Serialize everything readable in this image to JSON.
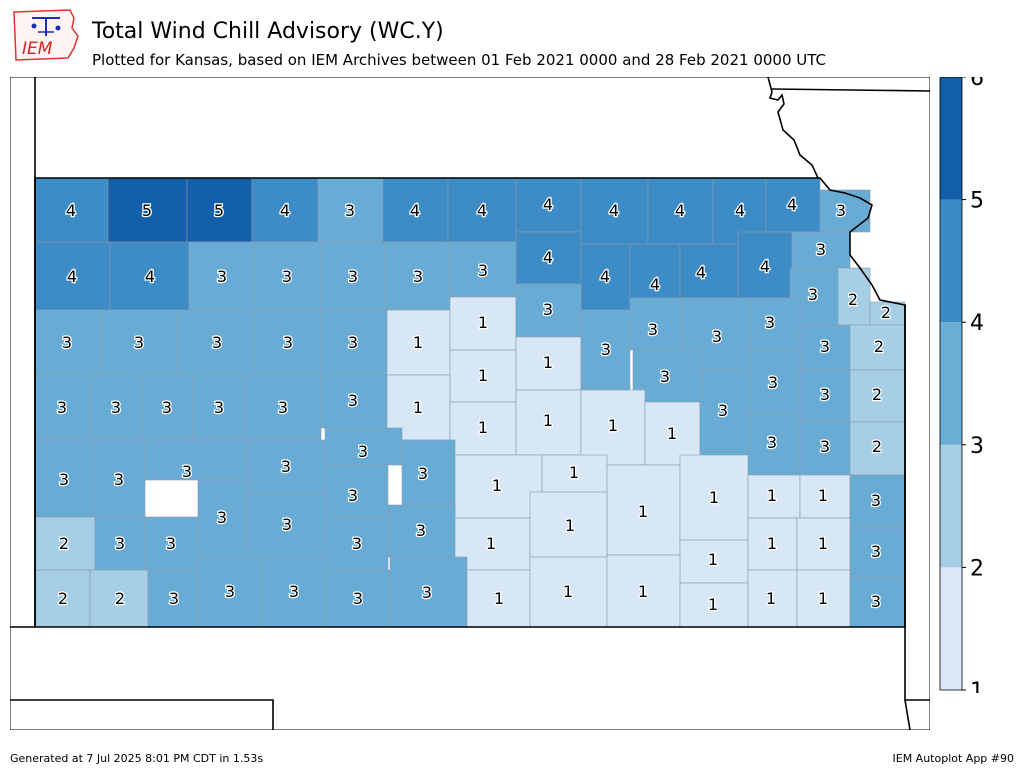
{
  "header": {
    "logo_text": "IEM",
    "title": "Total Wind Chill Advisory (WC.Y)",
    "subtitle": "Plotted for Kansas, based on IEM Archives  between 01 Feb 2021 0000 and 28 Feb 2021 0000 UTC"
  },
  "footer": {
    "generated": "Generated at 7 Jul 2025 8:01 PM CDT in 1.53s",
    "app": "IEM Autoplot App #90"
  },
  "legend": {
    "ticks": [
      "1",
      "2",
      "3",
      "4",
      "5",
      "6"
    ],
    "colors": [
      "#dbe9f6",
      "#a6cee4",
      "#6aaed6",
      "#3c8bc4",
      "#125ea8"
    ]
  },
  "colors": {
    "1": "#d8e7f5",
    "2": "#a6cee4",
    "3": "#68acd5",
    "4": "#3d8cc6",
    "5": "#135fa9"
  },
  "counties": [
    [
      "4",
      35,
      108,
      178,
      242,
      "z",
      "4",
      71,
      210
    ],
    [
      "5",
      108,
      187,
      178,
      242,
      "z",
      "5",
      147,
      210
    ],
    [
      "5",
      187,
      252,
      178,
      242,
      "z",
      "5",
      219,
      210
    ],
    [
      "4",
      252,
      318,
      178,
      242,
      "z",
      "4",
      285,
      210
    ],
    [
      "3",
      318,
      383,
      178,
      242,
      "z",
      "3",
      350,
      210
    ],
    [
      "4",
      383,
      448,
      178,
      242,
      "z",
      "4",
      415,
      210
    ],
    [
      "4",
      448,
      516,
      178,
      242,
      "z",
      "4",
      482,
      210
    ],
    [
      "4",
      516,
      581,
      178,
      232,
      "z",
      "4",
      548,
      204
    ],
    [
      "4",
      581,
      648,
      178,
      244,
      "z",
      "4",
      614,
      210
    ],
    [
      "4",
      648,
      713,
      178,
      244,
      "z",
      "4",
      680,
      210
    ],
    [
      "4",
      713,
      766,
      178,
      244,
      "z",
      "4",
      740,
      210
    ],
    [
      "4",
      766,
      820,
      178,
      232,
      "z",
      "4",
      792,
      204
    ],
    [
      "3",
      820,
      870,
      190,
      232,
      "z",
      "3",
      841,
      210
    ],
    [
      "4",
      35,
      110,
      242,
      310,
      "z",
      "4",
      72,
      276
    ],
    [
      "4",
      110,
      189,
      242,
      310,
      "z",
      "4",
      150,
      276
    ],
    [
      "3",
      189,
      255,
      242,
      310,
      "z",
      "3",
      222,
      276
    ],
    [
      "3",
      255,
      321,
      242,
      310,
      "z",
      "3",
      287,
      276
    ],
    [
      "3",
      321,
      385,
      242,
      310,
      "z",
      "3",
      353,
      276
    ],
    [
      "3",
      385,
      450,
      242,
      310,
      "z",
      "3",
      418,
      276
    ],
    [
      "3",
      450,
      516,
      242,
      297,
      "z",
      "3",
      483,
      270
    ],
    [
      "4",
      516,
      581,
      232,
      284,
      "z",
      "4",
      548,
      257
    ],
    [
      "4",
      581,
      630,
      244,
      310,
      "z",
      "4",
      605,
      276
    ],
    [
      "4",
      630,
      680,
      244,
      320,
      "z",
      "4",
      655,
      284
    ],
    [
      "4",
      680,
      738,
      244,
      298,
      "z",
      "4",
      701,
      272
    ],
    [
      "4",
      738,
      792,
      232,
      298,
      "z",
      "4",
      765,
      266
    ],
    [
      "3",
      792,
      850,
      232,
      268,
      "z",
      "3",
      821,
      249
    ],
    [
      "3",
      790,
      838,
      268,
      325,
      "z",
      "3",
      813,
      294
    ],
    [
      "2",
      838,
      870,
      268,
      335,
      "z",
      "2",
      853,
      299
    ],
    [
      "2",
      870,
      905,
      302,
      330,
      "z",
      "2",
      886,
      312
    ],
    [
      "3",
      35,
      100,
      310,
      375,
      "z",
      "3",
      67,
      342
    ],
    [
      "3",
      100,
      178,
      310,
      375,
      "z",
      "3",
      139,
      342
    ],
    [
      "3",
      178,
      255,
      310,
      375,
      "z",
      "3",
      217,
      342
    ],
    [
      "3",
      255,
      321,
      310,
      375,
      "z",
      "3",
      288,
      342
    ],
    [
      "3",
      321,
      387,
      310,
      375,
      "z",
      "3",
      353,
      342
    ],
    [
      "1",
      387,
      450,
      310,
      375,
      "z",
      "1",
      418,
      342
    ],
    [
      "1",
      450,
      516,
      297,
      350,
      "z",
      "1",
      483,
      322
    ],
    [
      "3",
      516,
      581,
      284,
      337,
      "z",
      "3",
      548,
      309
    ],
    [
      "1",
      516,
      581,
      337,
      390,
      "z",
      "1",
      548,
      362
    ],
    [
      "3",
      581,
      630,
      310,
      390,
      "z",
      "3",
      606,
      349
    ],
    [
      "3",
      630,
      682,
      298,
      350,
      "z",
      "3",
      653,
      329
    ],
    [
      "3",
      682,
      748,
      298,
      370,
      "z",
      "3",
      717,
      336
    ],
    [
      "3",
      748,
      800,
      298,
      350,
      "z",
      "3",
      770,
      322
    ],
    [
      "3",
      800,
      850,
      325,
      370,
      "z",
      "3",
      825,
      346
    ],
    [
      "2",
      850,
      905,
      325,
      370,
      "z",
      "2",
      879,
      346
    ],
    [
      "1",
      450,
      516,
      350,
      402,
      "z",
      "1",
      483,
      375
    ],
    [
      "3",
      633,
      700,
      350,
      402,
      "z",
      "3",
      665,
      376
    ],
    [
      "3",
      748,
      800,
      350,
      415,
      "z",
      "3",
      773,
      382
    ],
    [
      "3",
      800,
      850,
      370,
      420,
      "z",
      "3",
      825,
      394
    ],
    [
      "2",
      850,
      905,
      370,
      422,
      "z",
      "2",
      877,
      394
    ],
    [
      "3",
      35,
      90,
      375,
      440,
      "z",
      "3",
      62,
      407
    ],
    [
      "3",
      90,
      142,
      375,
      440,
      "z",
      "3",
      116,
      407
    ],
    [
      "3",
      142,
      193,
      375,
      440,
      "z",
      "3",
      167,
      407
    ],
    [
      "3",
      193,
      245,
      375,
      440,
      "z",
      "3",
      219,
      407
    ],
    [
      "3",
      245,
      321,
      375,
      440,
      "z",
      "3",
      283,
      407
    ],
    [
      "3",
      321,
      387,
      375,
      428,
      "z",
      "3",
      353,
      400
    ],
    [
      "1",
      387,
      450,
      375,
      440,
      "z",
      "1",
      418,
      407
    ],
    [
      "1",
      450,
      516,
      402,
      455,
      "z",
      "1",
      483,
      427
    ],
    [
      "1",
      516,
      581,
      390,
      455,
      "z",
      "1",
      548,
      420
    ],
    [
      "1",
      581,
      645,
      390,
      465,
      "z",
      "1",
      613,
      425
    ],
    [
      "1",
      645,
      700,
      402,
      465,
      "z",
      "1",
      672,
      433
    ],
    [
      "3",
      700,
      748,
      370,
      455,
      "z",
      "3",
      723,
      410
    ],
    [
      "3",
      748,
      800,
      415,
      475,
      "z",
      "3",
      772,
      442
    ],
    [
      "3",
      800,
      850,
      420,
      475,
      "z",
      "3",
      825,
      446
    ],
    [
      "2",
      850,
      905,
      422,
      475,
      "z",
      "2",
      877,
      446
    ],
    [
      "3",
      35,
      93,
      440,
      517,
      "z",
      "3",
      64,
      479
    ],
    [
      "3",
      93,
      145,
      440,
      517,
      "z",
      "3",
      119,
      479
    ],
    [
      "3",
      145,
      248,
      440,
      480,
      "z",
      "3",
      187,
      471
    ],
    [
      "3",
      248,
      325,
      440,
      492,
      "z",
      "3",
      286,
      466
    ],
    [
      "3",
      325,
      402,
      428,
      465,
      "z",
      "3",
      363,
      451
    ],
    [
      "3",
      402,
      455,
      440,
      505,
      "z",
      "3",
      423,
      473
    ],
    [
      "1",
      455,
      542,
      455,
      518,
      "z",
      "1",
      497,
      485
    ],
    [
      "1",
      542,
      607,
      455,
      492,
      "z",
      "1",
      574,
      472
    ],
    [
      "3",
      325,
      388,
      465,
      518,
      "z",
      "3",
      353,
      495
    ],
    [
      "1",
      607,
      680,
      465,
      555,
      "z",
      "1",
      643,
      511
    ],
    [
      "1",
      680,
      748,
      455,
      540,
      "z",
      "1",
      714,
      497
    ],
    [
      "1",
      748,
      800,
      475,
      518,
      "z",
      "1",
      772,
      495
    ],
    [
      "1",
      800,
      850,
      475,
      518,
      "z",
      "1",
      823,
      495
    ],
    [
      "3",
      850,
      905,
      475,
      528,
      "z",
      "3",
      876,
      500
    ],
    [
      "2",
      35,
      95,
      517,
      570,
      "z",
      "2",
      64,
      543
    ],
    [
      "3",
      95,
      145,
      517,
      570,
      "z",
      "3",
      120,
      543
    ],
    [
      "3",
      145,
      198,
      517,
      570,
      "z",
      "3",
      171,
      543
    ],
    [
      "3",
      198,
      248,
      480,
      557,
      "z",
      "3",
      222,
      517
    ],
    [
      "3",
      248,
      325,
      492,
      557,
      "z",
      "3",
      287,
      524
    ],
    [
      "3",
      325,
      388,
      518,
      570,
      "z",
      "3",
      357,
      543
    ],
    [
      "3",
      388,
      455,
      505,
      557,
      "z",
      "3",
      421,
      530
    ],
    [
      "1",
      455,
      530,
      518,
      570,
      "z",
      "1",
      491,
      543
    ],
    [
      "1",
      530,
      607,
      492,
      557,
      "z",
      "1",
      570,
      525
    ],
    [
      "1",
      680,
      748,
      540,
      583,
      "z",
      "1",
      713,
      559
    ],
    [
      "1",
      748,
      797,
      518,
      570,
      "z",
      "1",
      772,
      543
    ],
    [
      "1",
      797,
      850,
      518,
      570,
      "z",
      "1",
      823,
      543
    ],
    [
      "3",
      850,
      905,
      528,
      578,
      "z",
      "3",
      876,
      551
    ],
    [
      "2",
      35,
      90,
      570,
      627,
      "z",
      "2",
      63,
      598
    ],
    [
      "2",
      90,
      148,
      570,
      627,
      "z",
      "2",
      120,
      598
    ],
    [
      "3",
      148,
      198,
      570,
      627,
      "z",
      "3",
      174,
      598
    ],
    [
      "3",
      198,
      263,
      557,
      627,
      "z",
      "3",
      230,
      591
    ],
    [
      "3",
      263,
      327,
      557,
      627,
      "z",
      "3",
      294,
      591
    ],
    [
      "3",
      327,
      390,
      570,
      627,
      "z",
      "3",
      358,
      598
    ],
    [
      "3",
      390,
      467,
      557,
      627,
      "z",
      "3",
      427,
      592
    ],
    [
      "1",
      467,
      530,
      570,
      627,
      "z",
      "1",
      499,
      598
    ],
    [
      "1",
      530,
      607,
      557,
      627,
      "z",
      "1",
      568,
      591
    ],
    [
      "1",
      607,
      680,
      555,
      627,
      "z",
      "1",
      643,
      591
    ],
    [
      "1",
      680,
      748,
      583,
      627,
      "z",
      "1",
      713,
      604
    ],
    [
      "1",
      748,
      797,
      570,
      627,
      "z",
      "1",
      771,
      598
    ],
    [
      "1",
      797,
      850,
      570,
      627,
      "z",
      "1",
      823,
      598
    ],
    [
      "3",
      850,
      905,
      578,
      627,
      "z",
      "3",
      876,
      601
    ]
  ]
}
